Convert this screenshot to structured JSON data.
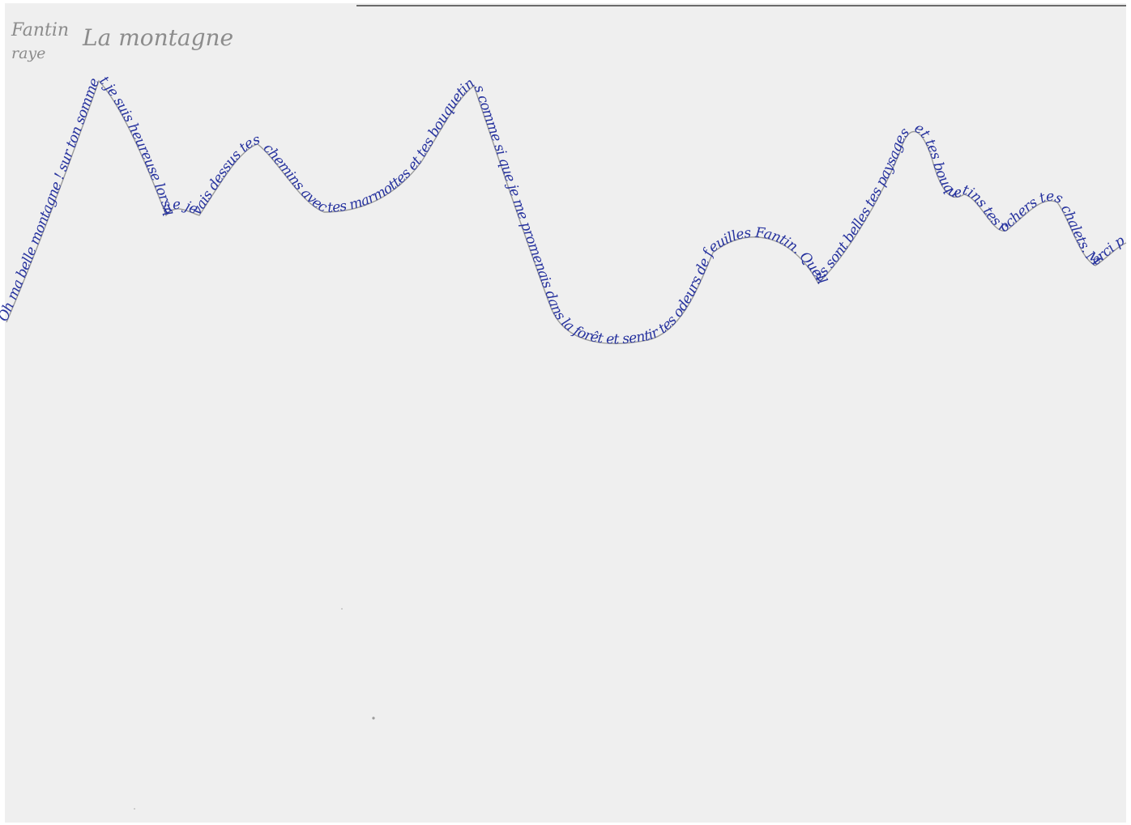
{
  "header": {
    "author_first": "Fantin",
    "author_second": "raye",
    "title": "La montagne"
  },
  "poem": {
    "text": "Oh ma belle montagne ! sur ton sommet je suis heureuse lorsque je vais dessus tes chemins avec tes marmottes et tes bouquetins comme si que je me promenais dans la forêt et sentir tes odeurs de feuilles Fantin. Quelles sont belles tes paysages et tes bouquetins tes rochers tes chalets. Merci pour toutes tes joies.",
    "ink_color": "#25319e",
    "line_color": "#9a9a9a"
  },
  "marks": {
    "dot_color": "#9a9a9a"
  }
}
